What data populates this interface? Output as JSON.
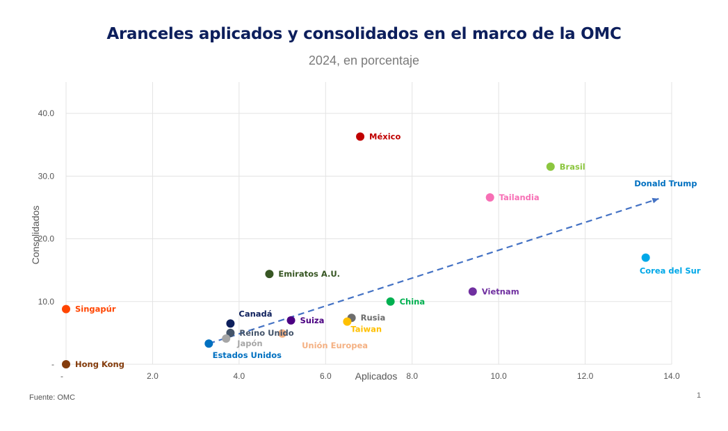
{
  "title": "Aranceles aplicados y consolidados en el marco de la OMC",
  "subtitle": "2024, en porcentaje",
  "source": "Fuente: OMC",
  "page_number": "1",
  "chart_data": {
    "type": "scatter",
    "title": "Aranceles aplicados y consolidados en el marco de la OMC",
    "subtitle": "2024, en porcentaje",
    "xlabel": "Aplicados",
    "ylabel": "Consolidados",
    "xlim": [
      0,
      14
    ],
    "ylim": [
      0,
      45
    ],
    "grid": true,
    "x_ticks": [
      0,
      2,
      4,
      6,
      8,
      10,
      12,
      14
    ],
    "x_tick_labels": [
      "-",
      "2.0",
      "4.0",
      "6.0",
      "8.0",
      "10.0",
      "12.0",
      "14.0"
    ],
    "y_ticks": [
      0,
      10,
      20,
      30,
      40
    ],
    "y_tick_labels": [
      "-",
      "10.0",
      "20.0",
      "30.0",
      "40.0"
    ],
    "points": [
      {
        "name": "México",
        "x": 6.8,
        "y": 36.3,
        "color": "#c00000",
        "label_pos": "right"
      },
      {
        "name": "Brasil",
        "x": 11.2,
        "y": 31.5,
        "color": "#8cc63f",
        "label_pos": "right"
      },
      {
        "name": "Tailandia",
        "x": 9.8,
        "y": 26.6,
        "color": "#f76fb5",
        "label_pos": "right"
      },
      {
        "name": "Corea del Sur",
        "x": 13.4,
        "y": 17.0,
        "color": "#00a8e8",
        "label_pos": "below"
      },
      {
        "name": "Emiratos A.U.",
        "x": 4.7,
        "y": 14.4,
        "color": "#375623",
        "label_pos": "right"
      },
      {
        "name": "Vietnam",
        "x": 9.4,
        "y": 11.6,
        "color": "#7030a0",
        "label_pos": "right"
      },
      {
        "name": "China",
        "x": 7.5,
        "y": 10.0,
        "color": "#00b050",
        "label_pos": "right"
      },
      {
        "name": "Singapúr",
        "x": 0.0,
        "y": 8.8,
        "color": "#ff4500",
        "label_pos": "right"
      },
      {
        "name": "Canadá",
        "x": 3.8,
        "y": 6.5,
        "color": "#0d1f5c",
        "label_pos": "above-right"
      },
      {
        "name": "Suiza",
        "x": 5.2,
        "y": 7.0,
        "color": "#4b0082",
        "label_pos": "right"
      },
      {
        "name": "Rusia",
        "x": 6.6,
        "y": 7.4,
        "color": "#6d6d6d",
        "label_pos": "right"
      },
      {
        "name": "Taiwan",
        "x": 6.5,
        "y": 6.8,
        "color": "#ffc000",
        "label_pos": "below-right"
      },
      {
        "name": "Reino Unido",
        "x": 3.8,
        "y": 5.0,
        "color": "#44546a",
        "label_pos": "right"
      },
      {
        "name": "Unión Europea",
        "x": 5.0,
        "y": 4.9,
        "color": "#f4b183",
        "label_pos": "below-far"
      },
      {
        "name": "Japón",
        "x": 3.7,
        "y": 4.1,
        "color": "#a6a6a6",
        "label_pos": "below-right"
      },
      {
        "name": "Estados Unidos",
        "x": 3.3,
        "y": 3.3,
        "color": "#0070c0",
        "label_pos": "below"
      },
      {
        "name": "Hong Kong",
        "x": 0.0,
        "y": 0.0,
        "color": "#843c0c",
        "label_pos": "right"
      }
    ],
    "annotations": [
      {
        "text": "Donald Trump",
        "type": "arrow",
        "from": [
          3.3,
          3.3
        ],
        "to": [
          13.7,
          26.4
        ],
        "color": "#4472c4",
        "text_color": "#0070c0"
      }
    ]
  }
}
